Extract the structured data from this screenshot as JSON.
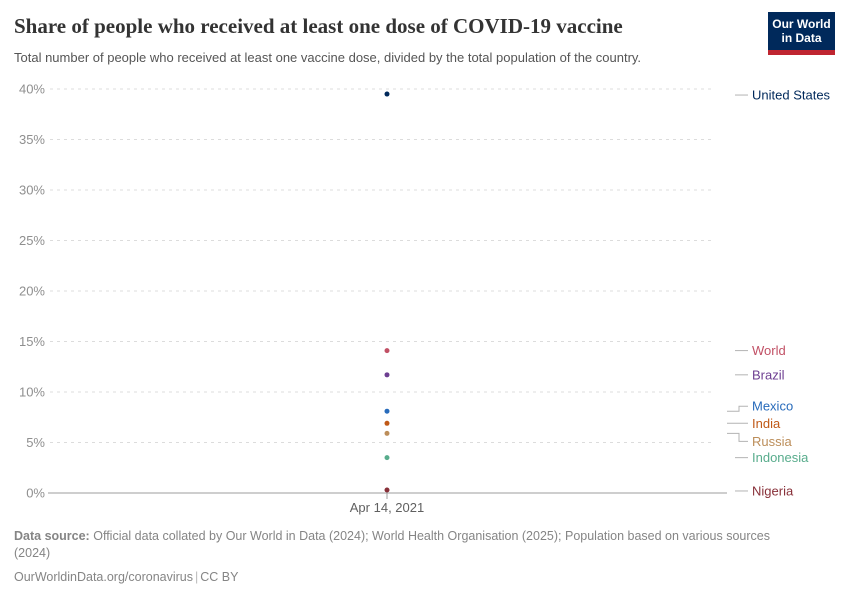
{
  "header": {
    "title": "Share of people who received at least one dose of COVID-19 vaccine",
    "subtitle": "Total number of people who received at least one vaccine dose, divided by the total population of the country.",
    "logo": {
      "line1": "Our World",
      "line2": "in Data",
      "bg_color": "#00295B",
      "accent_color": "#bf2530"
    }
  },
  "chart_data": {
    "type": "scatter",
    "title": "Share of people who received at least one dose of COVID-19 vaccine",
    "x": "Apr 14, 2021",
    "date_label": "Apr 14, 2021",
    "ylabel": "",
    "ylim": [
      0,
      40
    ],
    "yticks": [
      0,
      5,
      10,
      15,
      20,
      25,
      30,
      35,
      40
    ],
    "ytick_suffix": "%",
    "grid": "horizontal-dashed",
    "legend_position": "right-entity-labels",
    "series": [
      {
        "name": "United States",
        "value": 39.5,
        "color": "#00295B"
      },
      {
        "name": "World",
        "value": 14.1,
        "color": "#C15065"
      },
      {
        "name": "Brazil",
        "value": 11.7,
        "color": "#6D3E91"
      },
      {
        "name": "Mexico",
        "value": 8.1,
        "color": "#286BBB"
      },
      {
        "name": "India",
        "value": 6.9,
        "color": "#C05917"
      },
      {
        "name": "Russia",
        "value": 5.9,
        "color": "#BC8E5A"
      },
      {
        "name": "Indonesia",
        "value": 3.5,
        "color": "#58AC8C"
      },
      {
        "name": "Nigeria",
        "value": 0.3,
        "color": "#883039"
      }
    ]
  },
  "footer": {
    "source_label": "Data source:",
    "source_text": "Official data collated by Our World in Data (2024); World Health Organisation (2025); Population based on various sources (2024)",
    "link": "OurWorldinData.org/coronavirus",
    "separator": "|",
    "license": "CC BY"
  }
}
